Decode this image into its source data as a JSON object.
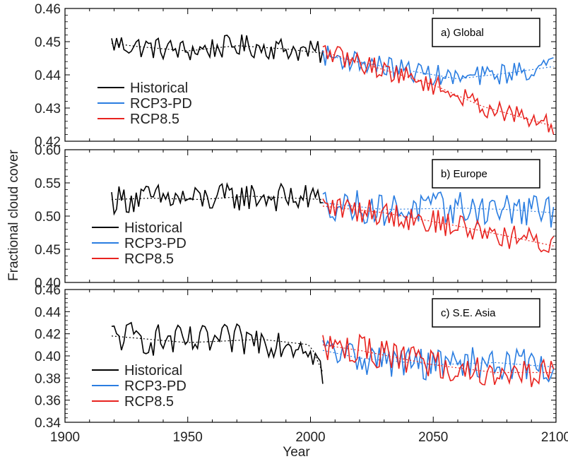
{
  "chart_data": {
    "type": "line",
    "xlabel": "Year",
    "ylabel": "Fractional cloud cover",
    "xlim": [
      1900,
      2100
    ],
    "xticks": [
      1900,
      1950,
      2000,
      2050,
      2100
    ],
    "shared_x": true,
    "grid": false,
    "legend": {
      "placement": "left",
      "entries": [
        "Historical",
        "RCP3-PD",
        "RCP8.5"
      ]
    },
    "series_colors": {
      "Historical": "#000000",
      "RCP3-PD": "#2a7de1",
      "RCP8.5": "#e8231f"
    },
    "panels": [
      {
        "label": "a)  Global",
        "ylim": [
          0.42,
          0.46
        ],
        "yticks": [
          "0.42",
          "0.43",
          "0.44",
          "0.45",
          "0.46"
        ],
        "series": [
          {
            "name": "Historical",
            "x_start": 1919,
            "x_end": 2005,
            "level": [
              [
                1919,
                0.4495
              ],
              [
                1930,
                0.4485
              ],
              [
                1950,
                0.4472
              ],
              [
                1970,
                0.4488
              ],
              [
                1990,
                0.4478
              ],
              [
                2005,
                0.4465
              ]
            ],
            "amp": 0.0035
          },
          {
            "name": "RCP3-PD",
            "x_start": 2005,
            "x_end": 2099,
            "level": [
              [
                2005,
                0.446
              ],
              [
                2030,
                0.4425
              ],
              [
                2060,
                0.4388
              ],
              [
                2080,
                0.4405
              ],
              [
                2099,
                0.4425
              ]
            ],
            "amp": 0.0032
          },
          {
            "name": "RCP8.5",
            "x_start": 2005,
            "x_end": 2099,
            "level": [
              [
                2005,
                0.447
              ],
              [
                2030,
                0.4415
              ],
              [
                2050,
                0.437
              ],
              [
                2070,
                0.4305
              ],
              [
                2099,
                0.4245
              ]
            ],
            "amp": 0.003
          }
        ]
      },
      {
        "label": "b)  Europe",
        "ylim": [
          0.4,
          0.6
        ],
        "yticks": [
          "0.40",
          "0.45",
          "0.50",
          "0.55",
          "0.60"
        ],
        "series": [
          {
            "name": "Historical",
            "x_start": 1919,
            "x_end": 2005,
            "level": [
              [
                1919,
                0.525
              ],
              [
                1935,
                0.527
              ],
              [
                1955,
                0.525
              ],
              [
                1975,
                0.53
              ],
              [
                2005,
                0.525
              ]
            ],
            "amp": 0.022
          },
          {
            "name": "RCP3-PD",
            "x_start": 2005,
            "x_end": 2099,
            "level": [
              [
                2005,
                0.52
              ],
              [
                2030,
                0.51
              ],
              [
                2060,
                0.512
              ],
              [
                2080,
                0.51
              ],
              [
                2099,
                0.505
              ]
            ],
            "amp": 0.025
          },
          {
            "name": "RCP8.5",
            "x_start": 2005,
            "x_end": 2099,
            "level": [
              [
                2005,
                0.515
              ],
              [
                2030,
                0.505
              ],
              [
                2060,
                0.485
              ],
              [
                2080,
                0.47
              ],
              [
                2099,
                0.455
              ]
            ],
            "amp": 0.02
          }
        ]
      },
      {
        "label": "c) S.E. Asia",
        "ylim": [
          0.34,
          0.46
        ],
        "yticks": [
          "0.34",
          "0.36",
          "0.38",
          "0.40",
          "0.42",
          "0.44",
          "0.46"
        ],
        "series": [
          {
            "name": "Historical",
            "x_start": 1919,
            "x_end": 2005,
            "level": [
              [
                1919,
                0.418
              ],
              [
                1950,
                0.412
              ],
              [
                1980,
                0.415
              ],
              [
                2000,
                0.41
              ],
              [
                2005,
                0.385
              ]
            ],
            "amp": 0.015
          },
          {
            "name": "RCP3-PD",
            "x_start": 2005,
            "x_end": 2099,
            "level": [
              [
                2005,
                0.405
              ],
              [
                2020,
                0.398
              ],
              [
                2050,
                0.392
              ],
              [
                2075,
                0.394
              ],
              [
                2099,
                0.39
              ]
            ],
            "amp": 0.015
          },
          {
            "name": "RCP8.5",
            "x_start": 2005,
            "x_end": 2099,
            "level": [
              [
                2005,
                0.41
              ],
              [
                2020,
                0.405
              ],
              [
                2050,
                0.392
              ],
              [
                2075,
                0.385
              ],
              [
                2099,
                0.385
              ]
            ],
            "amp": 0.014
          }
        ]
      }
    ]
  }
}
